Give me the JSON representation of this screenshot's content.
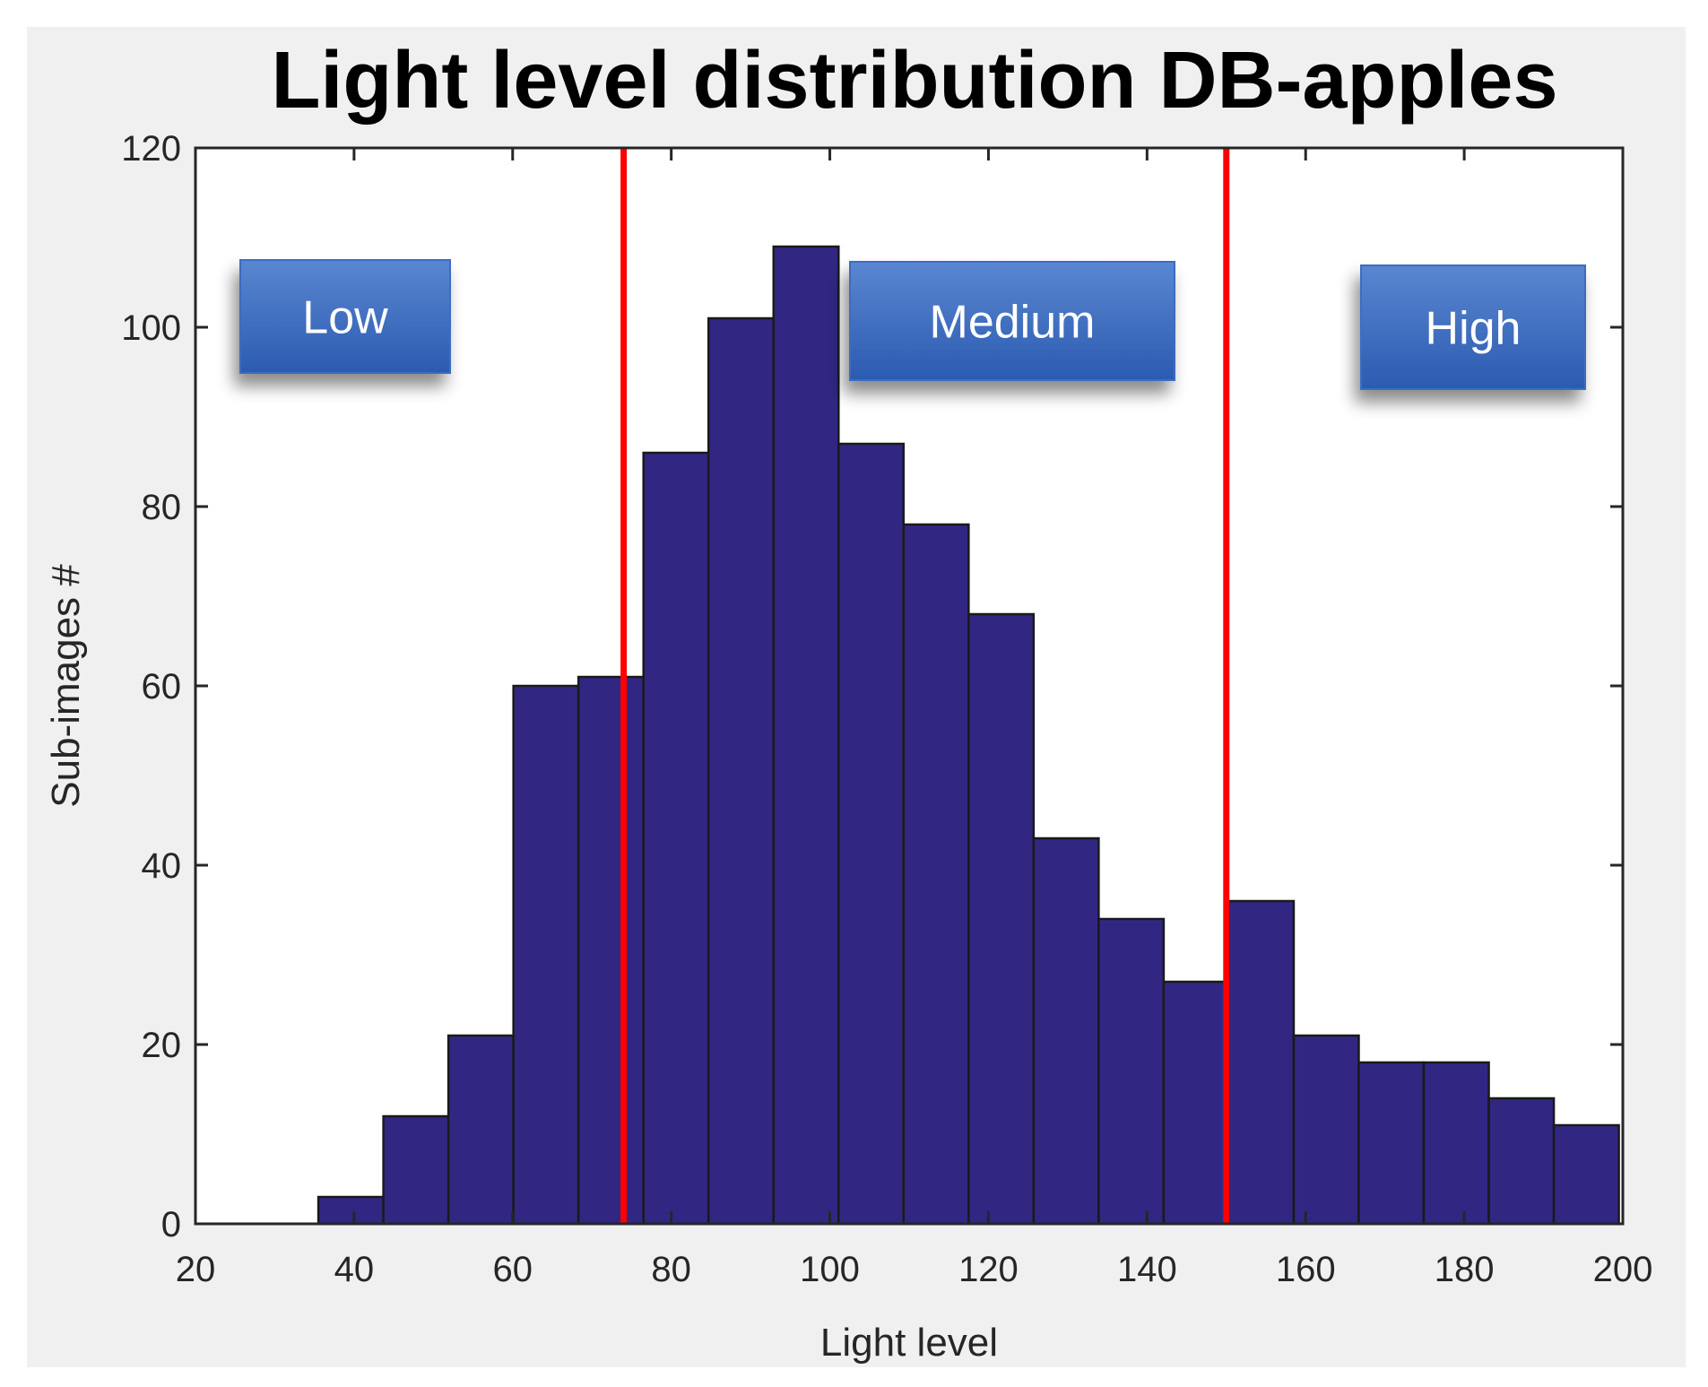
{
  "chart_data": {
    "type": "bar",
    "title": "Light level distribution DB-apples",
    "xlabel": "Light level",
    "ylabel": "Sub-images #",
    "xlim": [
      20,
      200
    ],
    "ylim": [
      0,
      120
    ],
    "xticks": [
      20,
      40,
      60,
      80,
      100,
      120,
      140,
      160,
      180,
      200
    ],
    "yticks": [
      0,
      20,
      40,
      60,
      80,
      100,
      120
    ],
    "bin_edges": [
      35.5,
      43.7,
      51.9,
      60.1,
      68.3,
      76.5,
      84.7,
      92.9,
      101.1,
      109.3,
      117.5,
      125.7,
      133.9,
      142.1,
      150.3,
      158.5,
      166.7,
      174.9,
      183.1,
      191.3,
      199.5
    ],
    "values": [
      3,
      12,
      21,
      60,
      61,
      86,
      101,
      109,
      87,
      78,
      68,
      43,
      34,
      27,
      36,
      21,
      18,
      18,
      14,
      11
    ],
    "bar_color": "#312783",
    "thresholds": [
      74,
      150
    ],
    "threshold_color": "#ff0000",
    "annotations": [
      {
        "label": "Low"
      },
      {
        "label": "Medium"
      },
      {
        "label": "High"
      }
    ],
    "grid": false
  }
}
